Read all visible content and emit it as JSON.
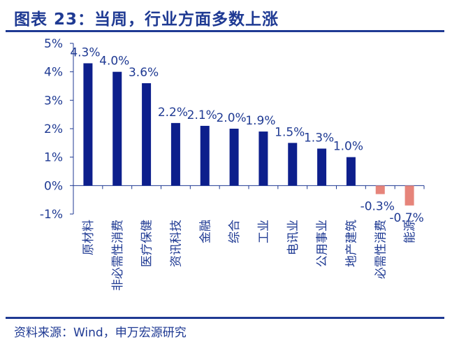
{
  "header": {
    "title": "图表 23：当周，行业方面多数上涨"
  },
  "footer": {
    "source": "资料来源：Wind，申万宏源研究"
  },
  "chart_data": {
    "type": "bar",
    "title": "图表 23：当周，行业方面多数上涨",
    "xlabel": "",
    "ylabel": "",
    "ylim": [
      -1,
      5
    ],
    "yticks": [
      -1,
      0,
      1,
      2,
      3,
      4,
      5
    ],
    "ytick_labels": [
      "-1%",
      "0%",
      "1%",
      "2%",
      "3%",
      "4%",
      "5%"
    ],
    "categories": [
      "原材料",
      "非必需性消费",
      "医疗保健",
      "资讯科技",
      "金融",
      "综合",
      "工业",
      "电讯业",
      "公用事业",
      "地产建筑",
      "必需性消费",
      "能源"
    ],
    "values": [
      4.3,
      4.0,
      3.6,
      2.2,
      2.1,
      2.0,
      1.9,
      1.5,
      1.3,
      1.0,
      -0.3,
      -0.7
    ],
    "data_labels": [
      "4.3%",
      "4.0%",
      "3.6%",
      "2.2%",
      "2.1%",
      "2.0%",
      "1.9%",
      "1.5%",
      "1.3%",
      "1.0%",
      "-0.3%",
      "-0.7%"
    ],
    "colors": {
      "positive": "#0d1f8c",
      "negative": "#e6847a",
      "axis": "#1f3a93"
    },
    "grid": false,
    "legend": "none"
  }
}
